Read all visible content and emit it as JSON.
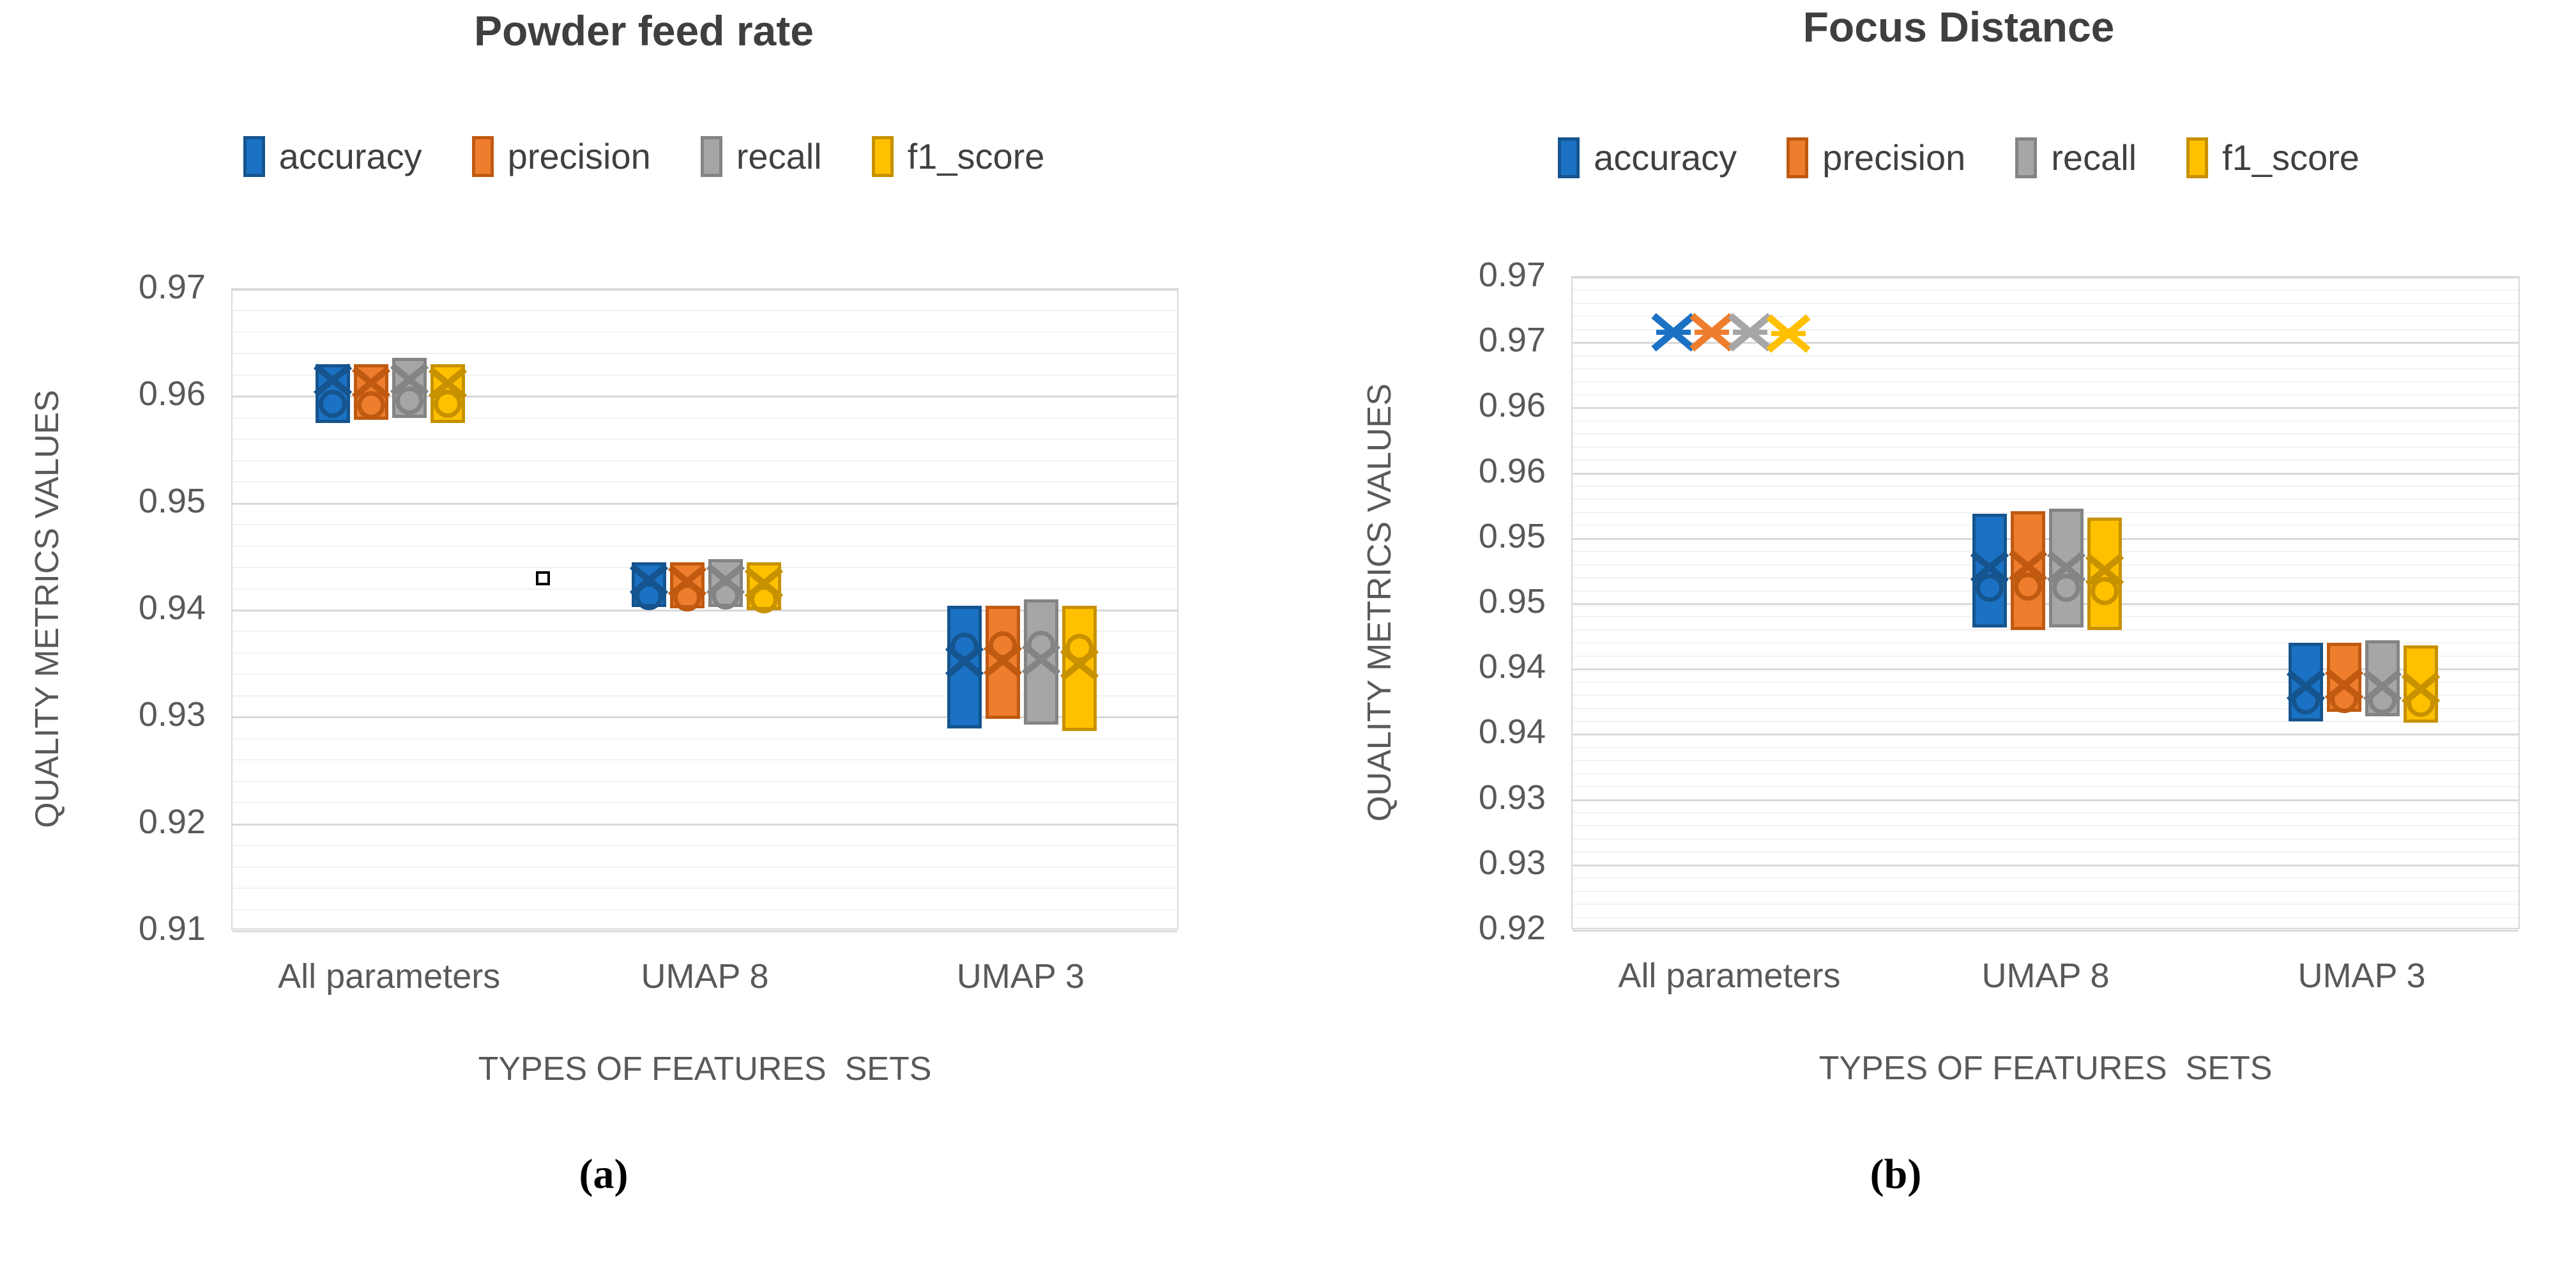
{
  "chart_data": [
    {
      "type": "box",
      "id": "powder-feed-rate",
      "title": "Powder feed rate",
      "caption": "(a)",
      "y_axis_title": "QUALITY METRICS VALUES",
      "x_axis_title": "TYPES OF FEATURES  SETS",
      "categories": [
        "All parameters",
        "UMAP 8",
        "UMAP 3"
      ],
      "axis": {
        "min": 0.91,
        "max": 0.97,
        "major_step": 0.01,
        "minor_step": 0.002,
        "tick_labels": [
          "0.97",
          "0.96",
          "0.95",
          "0.94",
          "0.93",
          "0.92",
          "0.91"
        ],
        "grid": "on",
        "legend_position": "top"
      },
      "series": [
        {
          "name": "accuracy",
          "color": "#1B72C4",
          "dark": "#15548E",
          "boxes": [
            {
              "low": 0.9575,
              "high": 0.963,
              "x": 0.9615,
              "circle": 0.9593
            },
            {
              "low": 0.9403,
              "high": 0.9445,
              "x": 0.9428,
              "circle": 0.9413
            },
            {
              "low": 0.9289,
              "high": 0.9404,
              "x": 0.9352,
              "circle": 0.9366
            }
          ]
        },
        {
          "name": "precision",
          "color": "#EE7D2D",
          "dark": "#C05A11",
          "boxes": [
            {
              "low": 0.9578,
              "high": 0.963,
              "x": 0.9613,
              "circle": 0.9592
            },
            {
              "low": 0.9402,
              "high": 0.9445,
              "x": 0.9427,
              "circle": 0.9412
            },
            {
              "low": 0.9298,
              "high": 0.9404,
              "x": 0.9353,
              "circle": 0.9367
            }
          ]
        },
        {
          "name": "recall",
          "color": "#A6A6A6",
          "dark": "#848484",
          "boxes": [
            {
              "low": 0.958,
              "high": 0.9636,
              "x": 0.9616,
              "circle": 0.9596
            },
            {
              "low": 0.9403,
              "high": 0.9448,
              "x": 0.9428,
              "circle": 0.9414
            },
            {
              "low": 0.9293,
              "high": 0.941,
              "x": 0.9354,
              "circle": 0.9368
            }
          ]
        },
        {
          "name": "f1_score",
          "color": "#FFC000",
          "dark": "#C79100",
          "boxes": [
            {
              "low": 0.9575,
              "high": 0.963,
              "x": 0.9612,
              "circle": 0.9593
            },
            {
              "low": 0.94,
              "high": 0.9445,
              "x": 0.9425,
              "circle": 0.941
            },
            {
              "low": 0.9287,
              "high": 0.9404,
              "x": 0.935,
              "circle": 0.9365
            }
          ]
        }
      ],
      "stray_marker": {
        "value": 0.943,
        "x_fraction": 0.328
      }
    },
    {
      "type": "box",
      "id": "focus-distance",
      "title": "Focus Distance",
      "caption": "(b)",
      "y_axis_title": "QUALITY METRICS VALUES",
      "x_axis_title": "TYPES OF FEATURES  SETS",
      "categories": [
        "All parameters",
        "UMAP 8",
        "UMAP 3"
      ],
      "axis": {
        "min": 0.92,
        "max": 0.97,
        "major_step": 0.005,
        "minor_step": 0.001,
        "tick_labels": [
          "0.97",
          "0.97",
          "0.96",
          "0.96",
          "0.95",
          "0.95",
          "0.94",
          "0.94",
          "0.93",
          "0.93",
          "0.92"
        ],
        "grid": "on",
        "legend_position": "top"
      },
      "series": [
        {
          "name": "accuracy",
          "color": "#1B72C4",
          "dark": "#15548E",
          "boxes": [
            {
              "low": 0.9656,
              "high": 0.966,
              "x": 0.9658,
              "circle": null,
              "flat": true
            },
            {
              "low": 0.9432,
              "high": 0.9519,
              "x": 0.9478,
              "circle": 0.9462
            },
            {
              "low": 0.936,
              "high": 0.942,
              "x": 0.9387,
              "circle": 0.9376
            }
          ]
        },
        {
          "name": "precision",
          "color": "#EE7D2D",
          "dark": "#C05A11",
          "boxes": [
            {
              "low": 0.9656,
              "high": 0.966,
              "x": 0.9658,
              "circle": null,
              "flat": true
            },
            {
              "low": 0.943,
              "high": 0.9521,
              "x": 0.9479,
              "circle": 0.9463
            },
            {
              "low": 0.9367,
              "high": 0.942,
              "x": 0.9388,
              "circle": 0.9377
            }
          ]
        },
        {
          "name": "recall",
          "color": "#A6A6A6",
          "dark": "#848484",
          "boxes": [
            {
              "low": 0.9656,
              "high": 0.966,
              "x": 0.9658,
              "circle": null,
              "flat": true
            },
            {
              "low": 0.9432,
              "high": 0.9523,
              "x": 0.9478,
              "circle": 0.9462
            },
            {
              "low": 0.9364,
              "high": 0.9422,
              "x": 0.9387,
              "circle": 0.9376
            }
          ]
        },
        {
          "name": "f1_score",
          "color": "#FFC000",
          "dark": "#C79100",
          "boxes": [
            {
              "low": 0.9655,
              "high": 0.9659,
              "x": 0.9657,
              "circle": null,
              "flat": true
            },
            {
              "low": 0.943,
              "high": 0.9516,
              "x": 0.9476,
              "circle": 0.946
            },
            {
              "low": 0.9359,
              "high": 0.9418,
              "x": 0.9385,
              "circle": 0.9374
            }
          ]
        }
      ]
    }
  ]
}
